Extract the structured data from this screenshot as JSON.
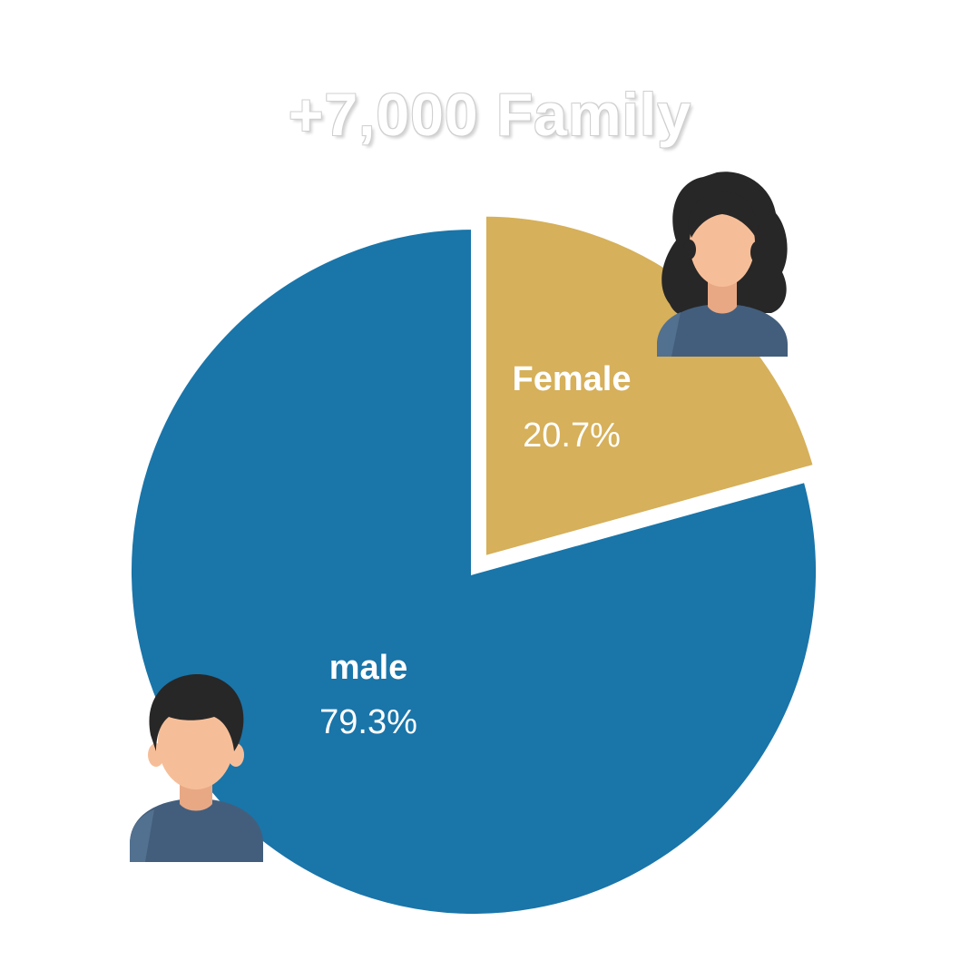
{
  "chart_data": {
    "type": "pie",
    "title": "+7,000 Family",
    "slices": [
      {
        "name": "Female",
        "value": 20.7,
        "label": "20.7%",
        "color": "#D6B05A"
      },
      {
        "name": "male",
        "value": 79.3,
        "label": "79.3%",
        "color": "#1A75A9"
      }
    ],
    "start_angle_deg": 0,
    "female_exploded": true
  },
  "icons": {
    "female": "woman-avatar-icon",
    "male": "man-avatar-icon"
  },
  "colors": {
    "skin": "#F6BE98",
    "hair": "#272727",
    "shirt": "#435E7C"
  }
}
